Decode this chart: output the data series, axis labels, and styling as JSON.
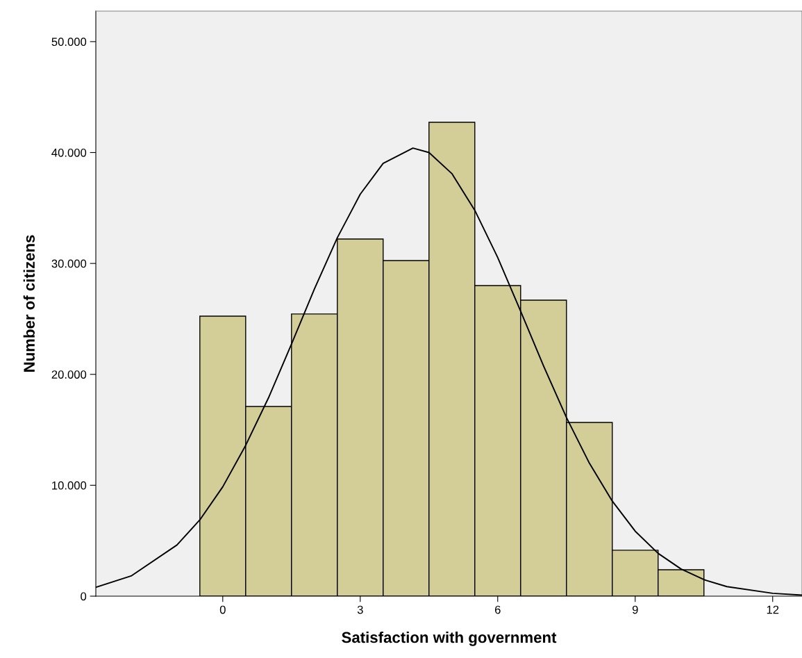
{
  "chart_data": {
    "type": "histogram",
    "xlabel": "Satisfaction with government",
    "ylabel": "Number of citizens",
    "xlim": [
      -2.77,
      12.64
    ],
    "ylim": [
      0,
      52750
    ],
    "xticks": [
      0,
      3,
      6,
      9,
      12
    ],
    "yticks": [
      {
        "value": 0,
        "label": "0"
      },
      {
        "value": 10000,
        "label": "10.000"
      },
      {
        "value": 20000,
        "label": "20.000"
      },
      {
        "value": 30000,
        "label": "30.000"
      },
      {
        "value": 40000,
        "label": "40.000"
      },
      {
        "value": 50000,
        "label": "50.000"
      }
    ],
    "grid": false,
    "legend": false,
    "series": [
      {
        "color": "#d3ce98",
        "bins": [
          -0.5,
          0.5,
          1.5,
          2.5,
          3.5,
          4.5,
          5.5,
          6.5,
          7.5,
          8.5,
          9.5,
          10.5
        ],
        "values": [
          25250,
          17100,
          25440,
          32200,
          30260,
          42730,
          28000,
          26690,
          15660,
          4140,
          2380
        ]
      },
      {
        "type": "line",
        "color": "#000000",
        "x": [
          -2.77,
          -2,
          -1,
          -0.5,
          0,
          0.5,
          1,
          1.5,
          2,
          2.5,
          3,
          3.5,
          4.15,
          4.5,
          5,
          5.5,
          6,
          6.5,
          7,
          7.5,
          8,
          8.5,
          9,
          9.5,
          10,
          10.5,
          11,
          12,
          12.64
        ],
        "values": [
          800,
          1820,
          4610,
          6880,
          9860,
          13600,
          17900,
          22730,
          27700,
          32320,
          36240,
          39020,
          40400,
          40000,
          38100,
          34790,
          30530,
          25690,
          20760,
          16110,
          11990,
          8570,
          5860,
          3860,
          2450,
          1490,
          860,
          260,
          100
        ]
      }
    ]
  }
}
